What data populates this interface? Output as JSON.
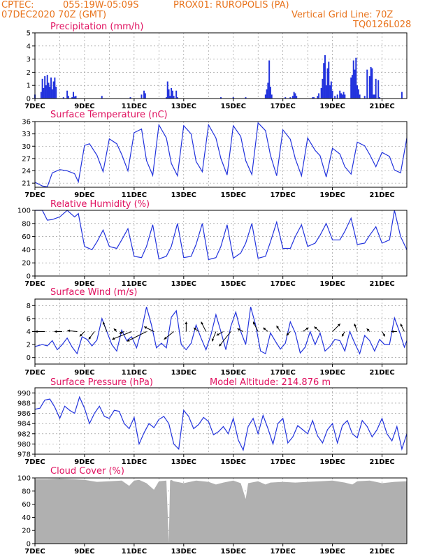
{
  "header": {
    "org": "CPTEC:",
    "coords": "055:19W-05:09S",
    "location": "PROX01: RUROPOLIS (PA)",
    "init": "07DEC2020 70Z (GMT)",
    "grid_note": "Vertical Grid Line: 70Z",
    "code": "TQ0126L028"
  },
  "colors": {
    "header": "#e8731c",
    "title": "#e0115f",
    "line": "#2233dd",
    "bar": "#2233dd",
    "cloud": "#b0b0b0",
    "arrow": "#000000"
  },
  "chart_data": [
    {
      "id": "precip",
      "type": "bar",
      "title": "Precipitation (mm/h)",
      "ylim": [
        0,
        5
      ],
      "yticks": [
        0,
        1,
        2,
        3,
        4,
        5
      ],
      "xlim_days": [
        7,
        22
      ],
      "xticks": [
        "7DEC",
        "9DEC",
        "11DEC",
        "13DEC",
        "15DEC",
        "17DEC",
        "19DEC",
        "21DEC"
      ],
      "x_day": [
        7.0,
        7.25,
        7.3,
        7.35,
        7.4,
        7.45,
        7.5,
        7.55,
        7.6,
        7.65,
        7.7,
        7.75,
        7.8,
        7.85,
        8.15,
        8.3,
        8.35,
        8.5,
        8.55,
        8.6,
        8.65,
        9.7,
        10.85,
        11.3,
        11.4,
        11.45,
        12.3,
        12.35,
        12.4,
        12.45,
        12.5,
        12.55,
        12.6,
        12.7,
        12.75,
        14.5,
        15.0,
        15.5,
        16.3,
        16.35,
        16.4,
        16.45,
        16.5,
        16.55,
        17.1,
        17.3,
        17.4,
        17.45,
        17.5,
        17.55,
        18.2,
        18.25,
        18.4,
        18.45,
        18.55,
        18.6,
        18.65,
        18.7,
        18.75,
        18.8,
        18.85,
        18.9,
        18.95,
        19.0,
        19.1,
        19.2,
        19.3,
        19.35,
        19.4,
        19.45,
        19.5,
        19.75,
        19.8,
        19.85,
        19.9,
        19.95,
        20.0,
        20.05,
        20.1,
        20.3,
        20.4,
        20.5,
        20.55,
        20.6,
        20.65,
        20.7,
        20.75,
        20.85,
        20.9,
        21.8
      ],
      "values": [
        0.3,
        0.5,
        1.5,
        0.8,
        1.7,
        1.0,
        1.8,
        1.2,
        0.9,
        1.6,
        0.7,
        1.3,
        1.6,
        0.9,
        0.1,
        0.6,
        0.2,
        0.1,
        0.5,
        0.15,
        0.2,
        0.2,
        0.1,
        0.3,
        0.6,
        0.4,
        0.1,
        1.3,
        0.7,
        0.2,
        0.8,
        0.6,
        0.2,
        0.6,
        0.1,
        0.1,
        0.1,
        0.1,
        0.3,
        0.7,
        1.2,
        2.9,
        0.9,
        0.3,
        0.1,
        0.1,
        0.2,
        0.5,
        0.4,
        0.2,
        0.1,
        0.1,
        0.2,
        0.4,
        0.8,
        1.5,
        2.7,
        3.3,
        1.0,
        2.3,
        2.8,
        1.0,
        1.3,
        0.6,
        0.2,
        0.3,
        0.6,
        0.4,
        0.3,
        0.5,
        0.3,
        1.6,
        1.8,
        2.9,
        2.2,
        3.1,
        1.0,
        0.7,
        0.3,
        0.2,
        2.2,
        1.7,
        2.4,
        2.3,
        0.3,
        0.3,
        1.5,
        1.4,
        0.1,
        0.5
      ]
    },
    {
      "id": "temp",
      "type": "line",
      "title": "Surface Temperature (nC)",
      "ylim": [
        20,
        36
      ],
      "yticks": [
        21,
        24,
        27,
        30,
        33,
        36
      ],
      "xlim_days": [
        7,
        22
      ],
      "xticks": [
        "7DEC",
        "9DEC",
        "11DEC",
        "13DEC",
        "15DEC",
        "17DEC",
        "19DEC",
        "21DEC"
      ],
      "x_day": [
        7.0,
        7.3,
        7.5,
        7.7,
        8.0,
        8.3,
        8.6,
        8.75,
        9.0,
        9.2,
        9.5,
        9.75,
        10.0,
        10.3,
        10.5,
        10.75,
        11.0,
        11.3,
        11.5,
        11.75,
        12.0,
        12.3,
        12.5,
        12.75,
        13.0,
        13.3,
        13.5,
        13.75,
        14.0,
        14.3,
        14.5,
        14.75,
        15.0,
        15.3,
        15.5,
        15.75,
        16.0,
        16.3,
        16.5,
        16.75,
        17.0,
        17.3,
        17.5,
        17.75,
        18.0,
        18.3,
        18.5,
        18.75,
        19.0,
        19.3,
        19.5,
        19.75,
        20.0,
        20.3,
        20.5,
        20.75,
        21.0,
        21.3,
        21.5,
        21.75,
        22.0
      ],
      "values": [
        21.2,
        20.3,
        20.1,
        23.5,
        24.3,
        24.0,
        23.3,
        21.3,
        30.2,
        30.6,
        27.8,
        23.8,
        31.8,
        30.6,
        28.0,
        24.0,
        33.3,
        34.2,
        26.5,
        22.9,
        35.2,
        32.0,
        25.8,
        22.8,
        35.0,
        33.0,
        26.3,
        23.8,
        35.2,
        32.0,
        27.0,
        23.0,
        35.0,
        32.4,
        26.5,
        23.1,
        35.7,
        33.8,
        27.8,
        22.8,
        34.0,
        31.7,
        27.0,
        22.8,
        32.0,
        29.0,
        27.7,
        22.5,
        29.5,
        28.1,
        25.0,
        23.2,
        31.0,
        30.1,
        28.0,
        25.0,
        28.5,
        27.5,
        24.2,
        23.5,
        32.0
      ]
    },
    {
      "id": "rh",
      "type": "line",
      "title": "Relative Humidity (%)",
      "ylim": [
        0,
        100
      ],
      "yticks": [
        0,
        20,
        40,
        60,
        80,
        100
      ],
      "xlim_days": [
        7,
        22
      ],
      "xticks": [
        "7DEC",
        "9DEC",
        "11DEC",
        "13DEC",
        "15DEC",
        "17DEC",
        "19DEC",
        "21DEC"
      ],
      "x_day": [
        7.0,
        7.3,
        7.5,
        7.7,
        8.0,
        8.3,
        8.6,
        8.75,
        9.0,
        9.3,
        9.5,
        9.75,
        10.0,
        10.3,
        10.5,
        10.75,
        11.0,
        11.3,
        11.5,
        11.75,
        12.0,
        12.3,
        12.5,
        12.75,
        13.0,
        13.3,
        13.5,
        13.75,
        14.0,
        14.3,
        14.5,
        14.75,
        15.0,
        15.3,
        15.5,
        15.75,
        16.0,
        16.3,
        16.5,
        16.75,
        17.0,
        17.3,
        17.5,
        17.75,
        18.0,
        18.3,
        18.5,
        18.75,
        19.0,
        19.3,
        19.5,
        19.75,
        20.0,
        20.3,
        20.5,
        20.75,
        21.0,
        21.3,
        21.5,
        21.75,
        22.0
      ],
      "values": [
        100,
        100,
        85,
        86,
        90,
        100,
        90,
        95,
        45,
        40,
        52,
        70,
        45,
        42,
        55,
        72,
        30,
        28,
        45,
        78,
        26,
        30,
        45,
        80,
        28,
        30,
        48,
        80,
        25,
        28,
        45,
        78,
        27,
        35,
        50,
        80,
        27,
        30,
        52,
        82,
        42,
        42,
        60,
        78,
        45,
        50,
        62,
        80,
        55,
        55,
        68,
        88,
        48,
        50,
        62,
        75,
        50,
        55,
        100,
        60,
        40
      ]
    },
    {
      "id": "wind",
      "type": "line",
      "title": "Surface Wind (m/s)",
      "ylim": [
        -1,
        9
      ],
      "yticks": [
        0,
        2,
        4,
        6,
        8
      ],
      "xlim_days": [
        7,
        22
      ],
      "xticks": [
        "7DEC",
        "9DEC",
        "11DEC",
        "13DEC",
        "15DEC",
        "17DEC",
        "19DEC",
        "21DEC"
      ],
      "x_day": [
        7.0,
        7.3,
        7.5,
        7.7,
        7.9,
        8.1,
        8.3,
        8.5,
        8.7,
        8.9,
        9.1,
        9.3,
        9.5,
        9.7,
        9.9,
        10.1,
        10.3,
        10.5,
        10.7,
        10.9,
        11.1,
        11.3,
        11.5,
        11.7,
        11.9,
        12.1,
        12.3,
        12.5,
        12.7,
        12.9,
        13.1,
        13.3,
        13.5,
        13.7,
        13.9,
        14.1,
        14.3,
        14.5,
        14.7,
        14.9,
        15.1,
        15.3,
        15.5,
        15.7,
        15.9,
        16.1,
        16.3,
        16.5,
        16.7,
        16.9,
        17.1,
        17.3,
        17.5,
        17.7,
        17.9,
        18.1,
        18.3,
        18.5,
        18.7,
        18.9,
        19.1,
        19.3,
        19.5,
        19.7,
        19.9,
        20.1,
        20.3,
        20.5,
        20.7,
        20.9,
        21.1,
        21.3,
        21.5,
        21.7,
        21.9,
        22.0
      ],
      "values": [
        1.7,
        2.0,
        1.8,
        2.6,
        1.2,
        2.0,
        3.0,
        1.6,
        0.6,
        3.2,
        2.8,
        1.8,
        2.7,
        6.0,
        4.0,
        2.0,
        1.0,
        4.2,
        2.6,
        3.2,
        1.5,
        4.2,
        7.8,
        5.0,
        1.5,
        2.2,
        1.5,
        6.2,
        7.2,
        2.0,
        1.2,
        2.2,
        5.0,
        3.0,
        1.2,
        3.5,
        6.6,
        4.0,
        1.2,
        4.8,
        7.0,
        4.0,
        2.0,
        7.8,
        5.0,
        1.0,
        0.6,
        3.8,
        2.5,
        1.3,
        2.2,
        5.5,
        3.8,
        0.7,
        1.6,
        4.0,
        2.0,
        3.8,
        1.0,
        1.7,
        2.8,
        2.6,
        1.0,
        4.0,
        2.2,
        0.6,
        3.4,
        2.6,
        1.0,
        2.8,
        2.0,
        2.0,
        6.1,
        4.0,
        1.6,
        2.6
      ],
      "arrows": [
        {
          "day": 7.4,
          "u": -1.0,
          "v": 0.0
        },
        {
          "day": 8.1,
          "u": -0.8,
          "v": 0.0
        },
        {
          "day": 8.7,
          "u": -1.0,
          "v": 0.1
        },
        {
          "day": 9.0,
          "u": -0.5,
          "v": -0.5
        },
        {
          "day": 9.4,
          "u": -0.6,
          "v": -0.8
        },
        {
          "day": 9.9,
          "u": -0.4,
          "v": 1.0
        },
        {
          "day": 10.3,
          "u": -0.3,
          "v": 0.3
        },
        {
          "day": 10.6,
          "u": -0.5,
          "v": -0.2
        },
        {
          "day": 10.9,
          "u": -2.0,
          "v": -0.8
        },
        {
          "day": 11.5,
          "u": -2.0,
          "v": -1.0
        },
        {
          "day": 11.8,
          "u": -1.0,
          "v": 0.5
        },
        {
          "day": 12.6,
          "u": -1.0,
          "v": -0.8
        },
        {
          "day": 13.1,
          "u": 0.0,
          "v": 1.0
        },
        {
          "day": 13.6,
          "u": -0.5,
          "v": 0.4
        },
        {
          "day": 13.9,
          "u": -0.5,
          "v": 1.0
        },
        {
          "day": 14.3,
          "u": -0.4,
          "v": -1.0
        },
        {
          "day": 14.6,
          "u": -0.7,
          "v": -0.4
        },
        {
          "day": 14.9,
          "u": -1.2,
          "v": -1.5
        },
        {
          "day": 15.4,
          "u": -0.6,
          "v": 0.3
        },
        {
          "day": 16.0,
          "u": -0.5,
          "v": 1.0
        },
        {
          "day": 16.4,
          "u": -0.5,
          "v": 0.4
        },
        {
          "day": 16.9,
          "u": -0.4,
          "v": 0.6
        },
        {
          "day": 17.3,
          "u": -0.4,
          "v": -0.4
        },
        {
          "day": 17.8,
          "u": 0.6,
          "v": 0.4
        },
        {
          "day": 18.5,
          "u": -0.6,
          "v": 0.5
        },
        {
          "day": 19.0,
          "u": 0.8,
          "v": 0.8
        },
        {
          "day": 19.5,
          "u": -0.3,
          "v": -0.5
        },
        {
          "day": 20.0,
          "u": -0.3,
          "v": 0.8
        },
        {
          "day": 20.5,
          "u": -0.3,
          "v": 0.3
        },
        {
          "day": 21.0,
          "u": 0.3,
          "v": -0.5
        },
        {
          "day": 21.6,
          "u": -0.6,
          "v": 0.0
        },
        {
          "day": 21.9,
          "u": -0.4,
          "v": 0.8
        }
      ]
    },
    {
      "id": "press",
      "type": "line",
      "title": "Surface Pressure (hPa)",
      "extra_label": "Model Altitude: 214.876 m",
      "ylim": [
        978,
        991
      ],
      "yticks": [
        978,
        980,
        982,
        984,
        986,
        988,
        990
      ],
      "xlim_days": [
        7,
        22
      ],
      "xticks": [
        "7DEC",
        "9DEC",
        "11DEC",
        "13DEC",
        "15DEC",
        "17DEC",
        "19DEC",
        "21DEC"
      ],
      "x_day": [
        7.0,
        7.2,
        7.4,
        7.6,
        7.8,
        8.0,
        8.2,
        8.4,
        8.6,
        8.8,
        9.0,
        9.2,
        9.4,
        9.6,
        9.8,
        10.0,
        10.2,
        10.4,
        10.6,
        10.8,
        11.0,
        11.2,
        11.4,
        11.6,
        11.8,
        12.0,
        12.2,
        12.4,
        12.6,
        12.8,
        13.0,
        13.2,
        13.4,
        13.6,
        13.8,
        14.0,
        14.2,
        14.4,
        14.6,
        14.8,
        15.0,
        15.2,
        15.4,
        15.6,
        15.8,
        16.0,
        16.2,
        16.4,
        16.6,
        16.8,
        17.0,
        17.2,
        17.4,
        17.6,
        17.8,
        18.0,
        18.2,
        18.4,
        18.6,
        18.8,
        19.0,
        19.2,
        19.4,
        19.6,
        19.8,
        20.0,
        20.2,
        20.4,
        20.6,
        20.8,
        21.0,
        21.2,
        21.4,
        21.6,
        21.8,
        22.0
      ],
      "values": [
        986.8,
        987.0,
        988.6,
        988.8,
        987.2,
        985.0,
        987.4,
        986.6,
        986.0,
        989.2,
        987.0,
        984.0,
        986.0,
        987.4,
        985.4,
        985.0,
        986.6,
        986.4,
        984.0,
        983.0,
        985.2,
        980.0,
        982.2,
        984.0,
        983.2,
        984.8,
        985.4,
        984.0,
        980.0,
        979.0,
        986.6,
        985.4,
        983.0,
        983.8,
        985.2,
        984.4,
        981.8,
        982.4,
        983.4,
        982.0,
        985.0,
        980.8,
        978.8,
        983.4,
        985.0,
        982.0,
        985.6,
        983.0,
        980.0,
        984.0,
        985.0,
        980.2,
        981.4,
        983.6,
        982.8,
        982.0,
        984.6,
        981.6,
        980.2,
        982.8,
        984.0,
        980.2,
        983.6,
        984.6,
        982.0,
        981.2,
        984.6,
        983.4,
        981.4,
        982.8,
        985.0,
        982.0,
        980.6,
        983.4,
        979.0,
        982.0
      ]
    },
    {
      "id": "cloud",
      "type": "area",
      "title": "Cloud Cover (%)",
      "ylim": [
        0,
        100
      ],
      "yticks": [
        0,
        20,
        40,
        60,
        80,
        100
      ],
      "xlim_days": [
        7,
        22
      ],
      "xticks": [
        "7DEC",
        "9DEC",
        "11DEC",
        "13DEC",
        "15DEC",
        "17DEC",
        "19DEC",
        "21DEC"
      ],
      "x_day": [
        7.0,
        7.5,
        8.0,
        8.5,
        9.0,
        9.5,
        10.0,
        10.5,
        10.8,
        11.0,
        11.2,
        11.5,
        11.8,
        12.0,
        12.3,
        12.4,
        12.45,
        12.5,
        12.6,
        13.0,
        13.5,
        14.0,
        14.3,
        14.6,
        15.0,
        15.3,
        15.5,
        15.6,
        16.0,
        16.3,
        16.5,
        17.0,
        17.5,
        18.0,
        18.5,
        19.0,
        19.5,
        19.8,
        20.0,
        20.5,
        21.0,
        21.5,
        22.0
      ],
      "values": [
        98,
        98,
        99,
        98,
        97,
        94,
        95,
        96,
        88,
        96,
        97,
        92,
        82,
        95,
        96,
        2,
        96,
        97,
        95,
        92,
        96,
        94,
        90,
        93,
        96,
        92,
        68,
        92,
        95,
        90,
        93,
        94,
        93,
        94,
        95,
        96,
        93,
        90,
        95,
        96,
        92,
        94,
        95
      ]
    }
  ]
}
